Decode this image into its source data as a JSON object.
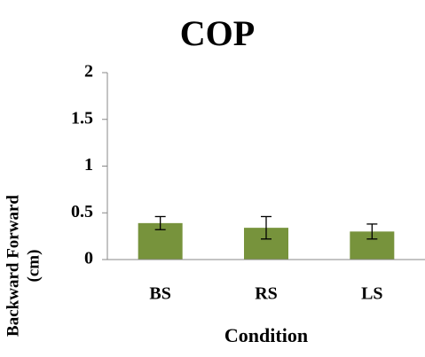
{
  "chart_data": {
    "type": "bar",
    "title": "COP",
    "categories": [
      "BS",
      "RS",
      "LS"
    ],
    "values": [
      0.39,
      0.34,
      0.3
    ],
    "errors": [
      0.07,
      0.12,
      0.08
    ],
    "color": "#77933c",
    "xlabel": "Condition",
    "ylabel": [
      "Backward Forward",
      "(cm)"
    ],
    "ylim": [
      0,
      2
    ],
    "yticks": [
      0,
      0.5,
      1,
      1.5,
      2
    ],
    "grid": false
  }
}
